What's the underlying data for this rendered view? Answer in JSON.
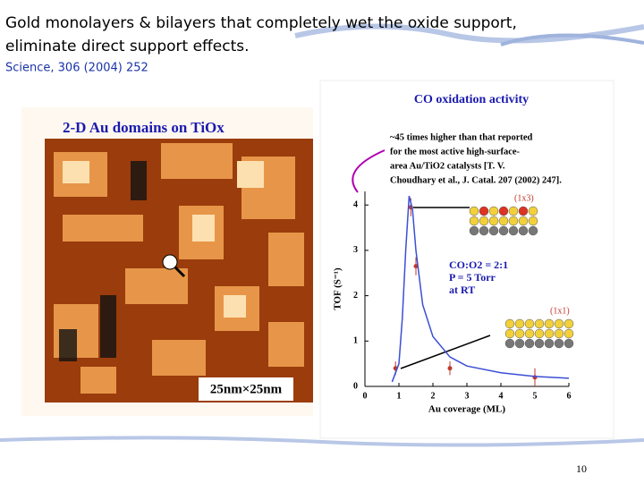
{
  "slide": {
    "title": [
      "Gold monolayers & bilayers that completely wet the oxide support,",
      " eliminate direct support effects."
    ],
    "reference": "Science, 306 (2004) 252",
    "image_title": "2-D Au domains on TiOx",
    "image_scale": "25nm×25nm",
    "page_number": "10"
  },
  "chart_data": {
    "type": "scatter",
    "title": "CO oxidation activity",
    "x_label": "Au coverage (ML)",
    "y_label": "TOF (S⁻¹)",
    "note": [
      "~45 times higher than that reported",
      "for the most active high-surface-",
      "area Au/TiO2 catalysts [T. V.",
      "Choudhary et al., J. Catal. 207 (2002) 247]."
    ],
    "conditions": [
      "CO:O2 = 2:1",
      "P = 5 Torr",
      "at RT"
    ],
    "structures": [
      "(1x3)",
      "(1x1)"
    ],
    "series": [
      {
        "color": "#c0392b",
        "x": [
          0.9,
          1.35,
          1.5,
          2.5,
          5.0
        ],
        "values": [
          0.4,
          3.95,
          2.65,
          0.4,
          0.2
        ],
        "errors": [
          0.15,
          0.2,
          0.2,
          0.15,
          0.2
        ]
      },
      {
        "type": "line",
        "color": "#3b4fd6",
        "x": [
          0.8,
          1.0,
          1.1,
          1.2,
          1.3,
          1.4,
          1.5,
          1.7,
          2.0,
          2.5,
          3,
          4,
          5,
          6
        ],
        "values": [
          0.1,
          0.5,
          1.5,
          3.0,
          4.2,
          3.9,
          3.0,
          1.8,
          1.1,
          0.65,
          0.45,
          0.3,
          0.22,
          0.18
        ]
      }
    ],
    "xlim": [
      0,
      6
    ],
    "ylim": [
      0,
      4.3
    ],
    "xticks": [
      0,
      1,
      2,
      3,
      4,
      5,
      6
    ],
    "yticks": [
      0,
      1,
      2,
      3,
      4
    ]
  }
}
